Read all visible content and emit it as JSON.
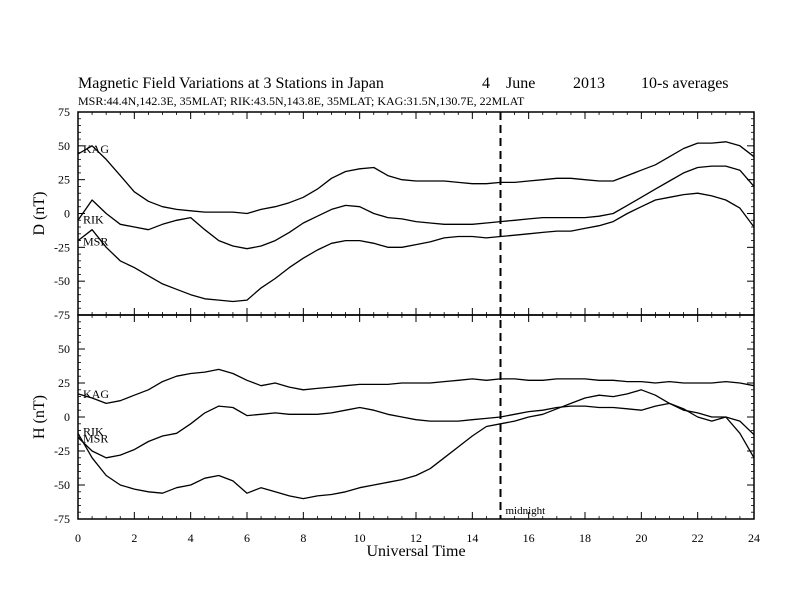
{
  "title": {
    "main": "Magnetic Field Variations at 3 Stations in Japan",
    "day": "4",
    "month": "June",
    "year": "2013",
    "note": "10-s averages"
  },
  "subtitle": "MSR:44.4N,142.3E, 35MLAT;  RIK:43.5N,143.8E, 35MLAT;  KAG:31.5N,130.7E, 22MLAT",
  "chart_data": [
    {
      "type": "line",
      "panel": "top",
      "ylabel": "D (nT)",
      "xlabel": "",
      "xlim": [
        0,
        24
      ],
      "ylim": [
        -75,
        75
      ],
      "yticks": [
        75,
        50,
        25,
        0,
        -25,
        -50,
        -75
      ],
      "xticks": [
        0,
        2,
        4,
        6,
        8,
        10,
        12,
        14,
        16,
        18,
        20,
        22,
        24
      ],
      "x": [
        0,
        0.5,
        1,
        1.5,
        2,
        2.5,
        3,
        3.5,
        4,
        4.5,
        5,
        5.5,
        6,
        6.5,
        7,
        7.5,
        8,
        8.5,
        9,
        9.5,
        10,
        10.5,
        11,
        11.5,
        12,
        12.5,
        13,
        13.5,
        14,
        14.5,
        15,
        15.5,
        16,
        16.5,
        17,
        17.5,
        18,
        18.5,
        19,
        19.5,
        20,
        20.5,
        21,
        21.5,
        22,
        22.5,
        23,
        23.5,
        24
      ],
      "series": [
        {
          "name": "KAG",
          "values": [
            44,
            50,
            40,
            28,
            16,
            9,
            5,
            3,
            2,
            1,
            1,
            1,
            0,
            3,
            5,
            8,
            12,
            18,
            26,
            31,
            33,
            34,
            28,
            25,
            24,
            24,
            24,
            23,
            22,
            22,
            23,
            23,
            24,
            25,
            26,
            26,
            25,
            24,
            24,
            28,
            32,
            36,
            42,
            48,
            52,
            52,
            53,
            50,
            42
          ]
        },
        {
          "name": "RIK",
          "values": [
            -5,
            10,
            0,
            -8,
            -10,
            -12,
            -8,
            -5,
            -3,
            -12,
            -20,
            -24,
            -26,
            -24,
            -20,
            -14,
            -7,
            -2,
            3,
            6,
            5,
            0,
            -3,
            -4,
            -6,
            -7,
            -8,
            -8,
            -8,
            -7,
            -6,
            -5,
            -4,
            -3,
            -3,
            -3,
            -3,
            -2,
            0,
            6,
            12,
            18,
            24,
            30,
            34,
            35,
            35,
            32,
            20
          ]
        },
        {
          "name": "MSR",
          "values": [
            -20,
            -12,
            -25,
            -35,
            -40,
            -46,
            -52,
            -56,
            -60,
            -63,
            -64,
            -65,
            -64,
            -55,
            -48,
            -40,
            -33,
            -27,
            -22,
            -20,
            -20,
            -22,
            -25,
            -25,
            -23,
            -21,
            -18,
            -17,
            -17,
            -18,
            -17,
            -16,
            -15,
            -14,
            -13,
            -13,
            -11,
            -9,
            -6,
            0,
            5,
            10,
            12,
            14,
            15,
            13,
            10,
            4,
            -10
          ]
        }
      ],
      "series_labels": [
        "KAG",
        "RIK",
        "MSR"
      ]
    },
    {
      "type": "line",
      "panel": "bottom",
      "ylabel": "H (nT)",
      "xlabel": "Universal Time",
      "xlim": [
        0,
        24
      ],
      "ylim": [
        -75,
        75
      ],
      "yticks": [
        75,
        50,
        25,
        0,
        -25,
        -50,
        -75
      ],
      "xticks": [
        0,
        2,
        4,
        6,
        8,
        10,
        12,
        14,
        16,
        18,
        20,
        22,
        24
      ],
      "x": [
        0,
        0.5,
        1,
        1.5,
        2,
        2.5,
        3,
        3.5,
        4,
        4.5,
        5,
        5.5,
        6,
        6.5,
        7,
        7.5,
        8,
        8.5,
        9,
        9.5,
        10,
        10.5,
        11,
        11.5,
        12,
        12.5,
        13,
        13.5,
        14,
        14.5,
        15,
        15.5,
        16,
        16.5,
        17,
        17.5,
        18,
        18.5,
        19,
        19.5,
        20,
        20.5,
        21,
        21.5,
        22,
        22.5,
        23,
        23.5,
        24
      ],
      "series": [
        {
          "name": "KAG",
          "values": [
            17,
            14,
            10,
            12,
            16,
            20,
            26,
            30,
            32,
            33,
            35,
            32,
            27,
            23,
            25,
            22,
            20,
            21,
            22,
            23,
            24,
            24,
            24,
            25,
            25,
            25,
            26,
            27,
            28,
            27,
            28,
            28,
            27,
            27,
            28,
            28,
            28,
            27,
            27,
            26,
            26,
            25,
            26,
            25,
            25,
            25,
            26,
            25,
            23
          ]
        },
        {
          "name": "RIK",
          "values": [
            -15,
            -25,
            -30,
            -28,
            -24,
            -18,
            -14,
            -12,
            -5,
            3,
            8,
            7,
            1,
            2,
            3,
            2,
            2,
            2,
            3,
            5,
            7,
            5,
            2,
            0,
            -2,
            -3,
            -3,
            -3,
            -2,
            -1,
            0,
            2,
            4,
            5,
            7,
            8,
            8,
            7,
            7,
            6,
            5,
            8,
            10,
            5,
            3,
            0,
            0,
            -3,
            -13
          ]
        },
        {
          "name": "MSR",
          "values": [
            -12,
            -30,
            -43,
            -50,
            -53,
            -55,
            -56,
            -52,
            -50,
            -45,
            -43,
            -47,
            -56,
            -52,
            -55,
            -58,
            -60,
            -58,
            -57,
            -55,
            -52,
            -50,
            -48,
            -46,
            -43,
            -38,
            -30,
            -22,
            -14,
            -7,
            -5,
            -3,
            0,
            2,
            6,
            10,
            14,
            16,
            15,
            17,
            20,
            16,
            10,
            6,
            0,
            -3,
            0,
            -12,
            -30
          ]
        }
      ],
      "series_labels": [
        "KAG",
        "RIK",
        "MSR"
      ]
    }
  ],
  "annotation": {
    "marker_x": 15,
    "marker_label": "midnight"
  }
}
